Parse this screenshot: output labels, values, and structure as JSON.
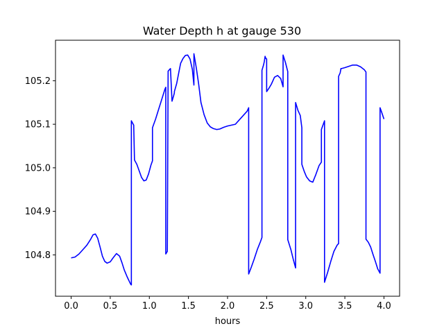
{
  "chart_data": {
    "type": "line",
    "title": "Water Depth h at gauge 530",
    "xlabel": "hours",
    "ylabel": "",
    "xlim": [
      -0.2,
      4.2
    ],
    "ylim": [
      104.705,
      105.293
    ],
    "xticks": [
      0.0,
      0.5,
      1.0,
      1.5,
      2.0,
      2.5,
      3.0,
      3.5,
      4.0
    ],
    "xtick_labels": [
      "0.0",
      "0.5",
      "1.0",
      "1.5",
      "2.0",
      "2.5",
      "3.0",
      "3.5",
      "4.0"
    ],
    "yticks": [
      104.8,
      104.9,
      105.0,
      105.1,
      105.2
    ],
    "ytick_labels": [
      "104.8",
      "104.9",
      "105.0",
      "105.1",
      "105.2"
    ],
    "grid": false,
    "legend": "none",
    "series": [
      {
        "color": "#0000ff",
        "x": [
          0.0,
          0.05,
          0.1,
          0.15,
          0.2,
          0.25,
          0.28,
          0.31,
          0.34,
          0.37,
          0.4,
          0.43,
          0.46,
          0.5,
          0.54,
          0.58,
          0.62,
          0.65,
          0.68,
          0.72,
          0.76,
          0.77,
          0.77,
          0.8,
          0.81,
          0.84,
          0.87,
          0.9,
          0.93,
          0.96,
          0.99,
          1.02,
          1.04,
          1.04,
          1.08,
          1.12,
          1.16,
          1.2,
          1.21,
          1.21,
          1.23,
          1.24,
          1.24,
          1.27,
          1.29,
          1.31,
          1.32,
          1.32,
          1.35,
          1.38,
          1.4,
          1.43,
          1.46,
          1.49,
          1.52,
          1.55,
          1.57,
          1.57,
          1.6,
          1.63,
          1.66,
          1.7,
          1.74,
          1.78,
          1.82,
          1.86,
          1.9,
          1.95,
          2.0,
          2.05,
          2.1,
          2.15,
          2.2,
          2.25,
          2.27,
          2.27,
          2.3,
          2.34,
          2.38,
          2.42,
          2.44,
          2.44,
          2.46,
          2.47,
          2.48,
          2.49,
          2.5,
          2.5,
          2.53,
          2.56,
          2.6,
          2.64,
          2.68,
          2.71,
          2.71,
          2.74,
          2.77,
          2.77,
          2.81,
          2.84,
          2.87,
          2.87,
          2.9,
          2.93,
          2.95,
          2.95,
          2.98,
          3.01,
          3.05,
          3.09,
          3.13,
          3.17,
          3.2,
          3.2,
          3.22,
          3.24,
          3.24,
          3.28,
          3.32,
          3.36,
          3.4,
          3.42,
          3.42,
          3.44,
          3.45,
          3.46,
          3.5,
          3.55,
          3.6,
          3.65,
          3.7,
          3.75,
          3.77,
          3.77,
          3.8,
          3.83,
          3.86,
          3.89,
          3.92,
          3.95,
          3.95,
          3.97,
          4.0
        ],
        "y": [
          104.793,
          104.795,
          104.802,
          104.812,
          104.822,
          104.836,
          104.846,
          104.848,
          104.838,
          104.818,
          104.797,
          104.785,
          104.781,
          104.784,
          104.794,
          104.803,
          104.797,
          104.782,
          104.765,
          104.748,
          104.733,
          104.731,
          105.108,
          105.098,
          105.018,
          105.008,
          104.993,
          104.978,
          104.97,
          104.972,
          104.986,
          105.006,
          105.016,
          105.092,
          105.112,
          105.135,
          105.158,
          105.181,
          105.185,
          104.802,
          104.808,
          105.22,
          105.222,
          105.228,
          105.153,
          105.165,
          105.172,
          105.175,
          105.194,
          105.222,
          105.24,
          105.251,
          105.258,
          105.259,
          105.25,
          105.226,
          105.19,
          105.262,
          105.23,
          105.193,
          105.15,
          105.122,
          105.103,
          105.094,
          105.09,
          105.088,
          105.089,
          105.093,
          105.096,
          105.098,
          105.1,
          105.11,
          105.12,
          105.13,
          105.138,
          104.756,
          104.77,
          104.79,
          104.812,
          104.83,
          104.84,
          105.224,
          105.236,
          105.244,
          105.256,
          105.251,
          105.25,
          105.175,
          105.183,
          105.192,
          105.208,
          105.212,
          105.205,
          105.186,
          105.259,
          105.242,
          105.221,
          104.835,
          104.812,
          104.79,
          104.77,
          105.15,
          105.132,
          105.12,
          105.092,
          105.008,
          104.992,
          104.979,
          104.97,
          104.967,
          104.985,
          105.005,
          105.013,
          105.088,
          105.098,
          105.108,
          104.737,
          104.76,
          104.785,
          104.808,
          104.822,
          104.826,
          105.21,
          105.218,
          105.228,
          105.228,
          105.23,
          105.233,
          105.236,
          105.236,
          105.232,
          105.225,
          105.22,
          104.836,
          104.829,
          104.818,
          104.801,
          104.785,
          104.768,
          104.758,
          105.138,
          105.128,
          105.112
        ]
      }
    ]
  }
}
